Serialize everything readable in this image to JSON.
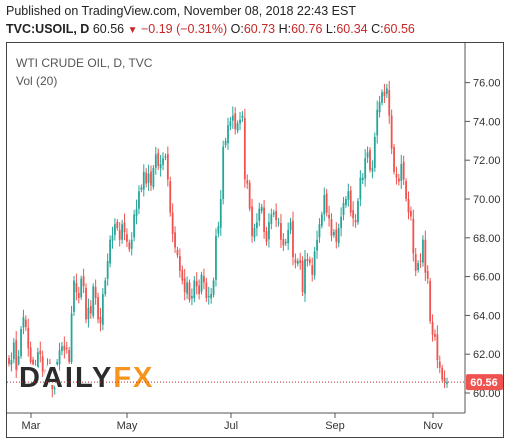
{
  "header": {
    "published": "Published on TradingView.com, November 08, 2018 22:43 EST",
    "symbol": "TVC:USOIL, D",
    "last": "60.56",
    "change": "−0.19 (−0.31%)",
    "open_label": "O:",
    "open": "60.73",
    "high_label": "H:",
    "high": "60.76",
    "low_label": "L:",
    "low": "60.34",
    "close_label": "C:",
    "close": "60.56"
  },
  "legend": {
    "title": "WTI CRUDE OIL, D, TVC",
    "indicator": "Vol (20)"
  },
  "watermark": {
    "part1": "DAILY",
    "part2": "FX"
  },
  "colors": {
    "up": "#26a69a",
    "down": "#ef5350",
    "price_line": "#c62828",
    "price_badge": "#ef5350"
  },
  "chart_data": {
    "type": "candlestick",
    "title": "WTI CRUDE OIL, D, TVC",
    "x_tick_labels": [
      "Mar",
      "May",
      "Jul",
      "Sep",
      "Nov"
    ],
    "y_tick_labels": [
      "60.00",
      "62.00",
      "64.00",
      "66.00",
      "68.00",
      "70.00",
      "72.00",
      "74.00",
      "76.00"
    ],
    "ylim": [
      59.4,
      77.3
    ],
    "last_price": 60.56,
    "last_price_label": "60.56",
    "period": "2018-02-14 to 2018-11-08",
    "closes": [
      61.5,
      61.7,
      62.6,
      61.2,
      61.9,
      63.3,
      63.9,
      63.4,
      62.3,
      61.6,
      61.4,
      60.9,
      62.1,
      62.0,
      61.1,
      60.7,
      61.4,
      61.1,
      60.2,
      61.0,
      61.6,
      62.2,
      62.4,
      62.2,
      62.3,
      61.6,
      64.1,
      65.8,
      65.2,
      64.9,
      65.9,
      65.5,
      63.8,
      64.4,
      64.1,
      65.5,
      64.9,
      63.8,
      63.6,
      65.1,
      65.8,
      66.8,
      67.9,
      68.1,
      68.7,
      68.5,
      67.9,
      68.7,
      68.3,
      67.8,
      67.4,
      67.9,
      69.2,
      69.5,
      70.4,
      70.6,
      71.4,
      70.8,
      71.3,
      70.7,
      71.6,
      72.3,
      71.7,
      71.8,
      72.1,
      72.2,
      71.0,
      69.3,
      68.2,
      67.5,
      67.1,
      66.3,
      65.8,
      65.2,
      65.7,
      64.8,
      65.0,
      65.8,
      65.5,
      65.1,
      66.1,
      65.7,
      64.9,
      65.0,
      65.1,
      65.8,
      68.1,
      68.6,
      70.0,
      72.7,
      73.0,
      73.8,
      74.0,
      74.3,
      73.6,
      73.9,
      74.1,
      74.3,
      71.0,
      70.8,
      69.5,
      68.1,
      68.5,
      68.8,
      69.5,
      69.6,
      68.3,
      67.8,
      68.8,
      69.2,
      69.3,
      68.9,
      68.8,
      67.9,
      67.6,
      67.8,
      68.4,
      68.8,
      67.0,
      66.7,
      66.8,
      66.7,
      65.2,
      66.9,
      66.8,
      66.7,
      66.1,
      67.3,
      67.9,
      68.7,
      69.2,
      70.2,
      69.3,
      69.0,
      68.1,
      68.3,
      67.8,
      68.5,
      69.1,
      69.8,
      70.0,
      70.4,
      69.3,
      69.0,
      68.8,
      69.9,
      71.1,
      71.1,
      72.1,
      72.4,
      71.5,
      71.6,
      73.2,
      74.6,
      75.0,
      75.5,
      75.3,
      75.7,
      74.3,
      72.6,
      71.4,
      71.1,
      70.9,
      71.8,
      71.0,
      70.0,
      69.3,
      69.1,
      67.2,
      66.3,
      66.7,
      66.8,
      67.9,
      66.2,
      65.9,
      63.7,
      63.0,
      62.9,
      61.7,
      61.3,
      60.7,
      60.6,
      60.56
    ]
  }
}
